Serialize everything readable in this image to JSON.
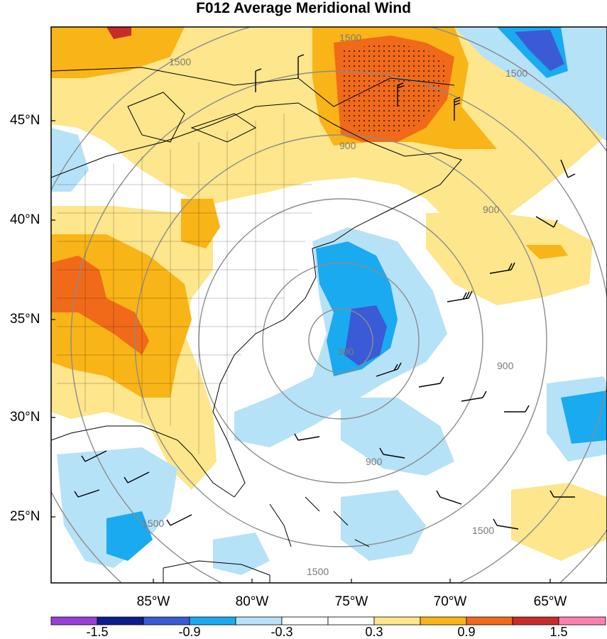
{
  "title": "F012 Average Meridional Wind",
  "latitude_labels": [
    "45°N",
    "40°N",
    "35°N",
    "30°N",
    "25°N"
  ],
  "longitude_labels": [
    "85°W",
    "80°W",
    "75°W",
    "70°W",
    "65°W"
  ],
  "contour_labels": [
    "1500",
    "1500",
    "1500",
    "900",
    "900",
    "900",
    "900",
    "300",
    "1500",
    "1500",
    "1500"
  ],
  "colorbar": {
    "labels": [
      "-1.5",
      "-0.9",
      "-0.3",
      "0.3",
      "0.9",
      "1.5"
    ],
    "colors": [
      "#9a3fd6",
      "#0c1e8c",
      "#3b5bd6",
      "#1aaaf0",
      "#b6e2f7",
      "#ffffff",
      "#ffffff",
      "#fde68c",
      "#f9b417",
      "#f06a1a",
      "#c82b2b",
      "#ff80b0"
    ]
  },
  "colors": {
    "warm_light": "#fde68c",
    "warm_mid": "#f9b417",
    "warm_strong": "#f06a1a",
    "cool_light": "#b6e2f7",
    "cool_mid": "#1aaaf0",
    "cool_strong": "#3b5bd6",
    "contour": "#8c8c8c"
  }
}
